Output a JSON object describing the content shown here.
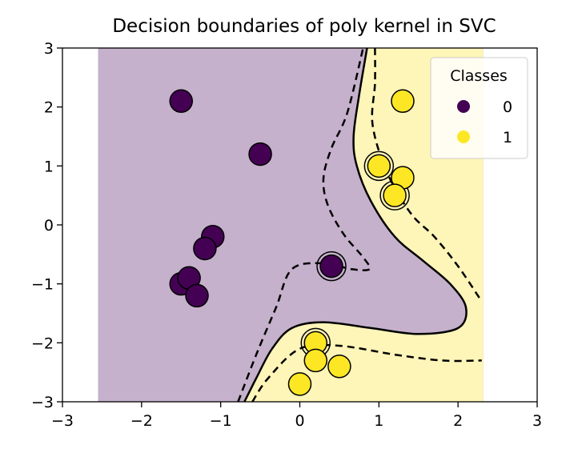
{
  "chart_data": {
    "type": "scatter",
    "title": "Decision boundaries of poly kernel in SVC",
    "xlabel": "",
    "ylabel": "",
    "xlim": [
      -3,
      3
    ],
    "ylim": [
      -3,
      3
    ],
    "xticks": [
      "−3",
      "−2",
      "−1",
      "0",
      "1",
      "2",
      "3"
    ],
    "yticks": [
      "−3",
      "−2",
      "−1",
      "0",
      "1",
      "2",
      "3"
    ],
    "grid": false,
    "legend": {
      "title": "Classes",
      "placement": "top-right",
      "entries": [
        "0",
        "1"
      ]
    },
    "colors": {
      "class0": "#440154",
      "class1": "#fde725",
      "region0": "#c5b1cb",
      "region1": "#fef5b8"
    },
    "series": [
      {
        "name": "0",
        "points": [
          [
            -1.5,
            2.1
          ],
          [
            -0.5,
            1.2
          ],
          [
            -1.1,
            -0.2
          ],
          [
            -1.2,
            -0.4
          ],
          [
            -1.5,
            -1.0
          ],
          [
            -1.4,
            -0.9
          ],
          [
            -1.3,
            -1.2
          ],
          [
            0.4,
            -0.7
          ]
        ]
      },
      {
        "name": "1",
        "points": [
          [
            1.3,
            2.1
          ],
          [
            1.0,
            1.0
          ],
          [
            1.3,
            0.8
          ],
          [
            1.2,
            0.5
          ],
          [
            0.2,
            -2.0
          ],
          [
            0.2,
            -2.3
          ],
          [
            0.5,
            -2.4
          ],
          [
            0.0,
            -2.7
          ]
        ]
      }
    ],
    "support_vectors": [
      [
        0.4,
        -0.7
      ],
      [
        1.0,
        1.0
      ],
      [
        1.2,
        0.5
      ],
      [
        0.2,
        -2.0
      ]
    ],
    "decision_boundary": [
      [
        0.85,
        3.0
      ],
      [
        0.75,
        2.2
      ],
      [
        0.68,
        1.5
      ],
      [
        0.72,
        1.0
      ],
      [
        0.9,
        0.4
      ],
      [
        1.2,
        -0.2
      ],
      [
        1.55,
        -0.6
      ],
      [
        1.9,
        -1.0
      ],
      [
        2.1,
        -1.4
      ],
      [
        2.0,
        -1.75
      ],
      [
        1.5,
        -1.85
      ],
      [
        0.9,
        -1.75
      ],
      [
        0.3,
        -1.65
      ],
      [
        -0.1,
        -1.75
      ],
      [
        -0.35,
        -2.1
      ],
      [
        -0.55,
        -2.6
      ],
      [
        -0.7,
        -3.0
      ]
    ],
    "margin_lower": [
      [
        -0.78,
        -3.0
      ],
      [
        -0.55,
        -2.2
      ],
      [
        -0.3,
        -1.4
      ],
      [
        -0.1,
        -0.75
      ],
      [
        0.3,
        -0.65
      ],
      [
        0.65,
        -0.75
      ],
      [
        0.88,
        -0.75
      ],
      [
        0.8,
        -0.55
      ],
      [
        0.55,
        -0.15
      ],
      [
        0.35,
        0.35
      ],
      [
        0.3,
        0.8
      ],
      [
        0.4,
        1.3
      ],
      [
        0.6,
        1.9
      ],
      [
        0.8,
        3.0
      ]
    ],
    "margin_upper": [
      [
        0.95,
        3.0
      ],
      [
        0.95,
        2.4
      ],
      [
        0.92,
        1.7
      ],
      [
        1.1,
        0.9
      ],
      [
        1.4,
        0.2
      ],
      [
        1.7,
        -0.2
      ],
      [
        2.0,
        -0.7
      ],
      [
        2.3,
        -1.3
      ]
    ],
    "margin_bottom": [
      [
        -0.6,
        -3.0
      ],
      [
        -0.4,
        -2.6
      ],
      [
        0.0,
        -2.1
      ],
      [
        0.5,
        -2.05
      ],
      [
        1.2,
        -2.2
      ],
      [
        1.8,
        -2.3
      ],
      [
        2.3,
        -2.3
      ]
    ]
  }
}
